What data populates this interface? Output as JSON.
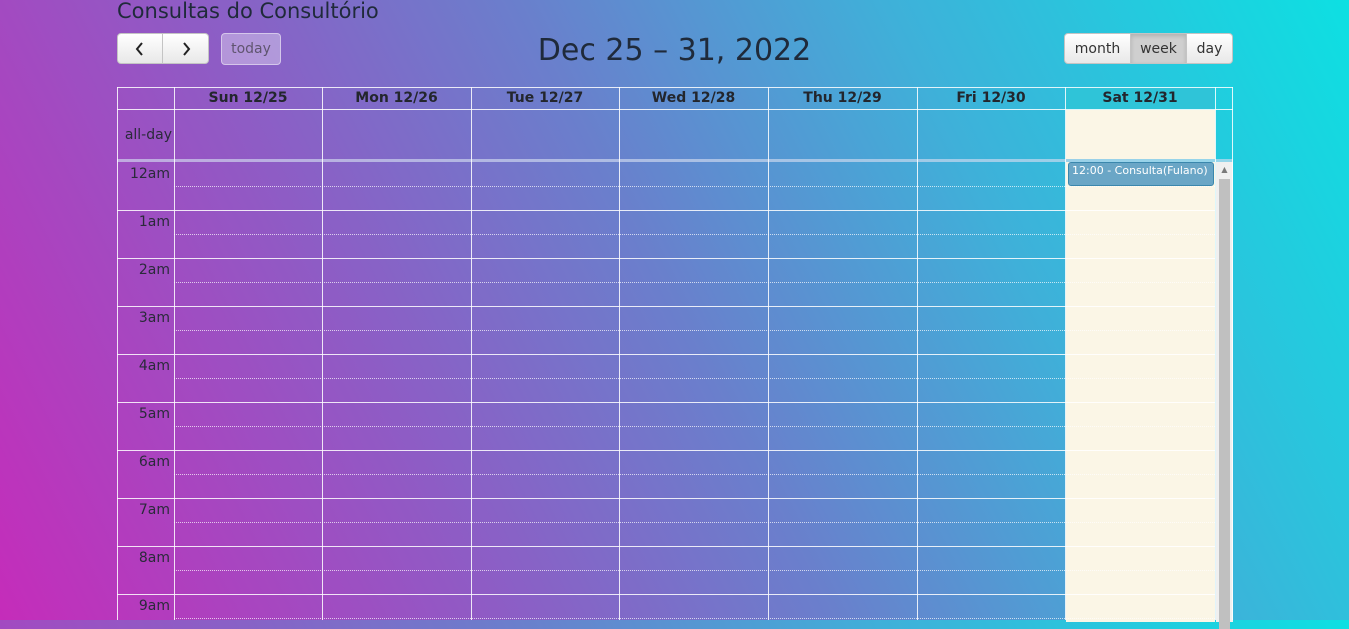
{
  "page": {
    "title": "Consultas do Consultório"
  },
  "toolbar": {
    "prev_icon": "chevron-left-icon",
    "next_icon": "chevron-right-icon",
    "prev_glyph": "‹",
    "next_glyph": "›",
    "today_label": "today",
    "range_title": "Dec 25 – 31, 2022",
    "views": {
      "month": "month",
      "week": "week",
      "day": "day"
    },
    "active_view": "week"
  },
  "calendar": {
    "days": [
      "Sun 12/25",
      "Mon 12/26",
      "Tue 12/27",
      "Wed 12/28",
      "Thu 12/29",
      "Fri 12/30",
      "Sat 12/31"
    ],
    "today_column": "Sat 12/31",
    "allday_label": "all-day",
    "hours": [
      "12am",
      "1am",
      "2am",
      "3am",
      "4am",
      "5am",
      "6am",
      "7am",
      "8am",
      "9am"
    ],
    "scroll_up_glyph": "▲",
    "events": [
      {
        "day": "Sat 12/31",
        "label": "12:00 - Consulta(Fulano)"
      }
    ]
  },
  "colors": {
    "today_header": "#2fc4d8",
    "today_highlight": "#fbf6e6",
    "event_bg": "#6aa6c6",
    "event_border": "#3a87ad"
  }
}
